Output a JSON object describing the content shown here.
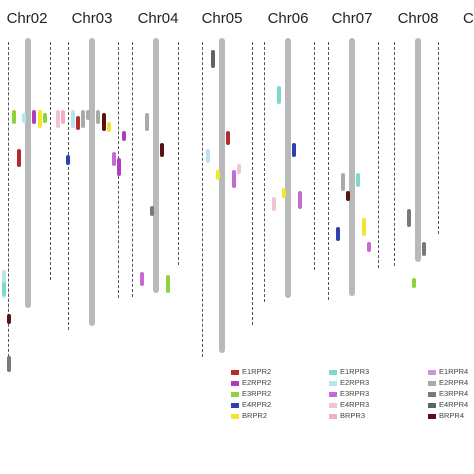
{
  "colors": {
    "E1RPR2": "#b72a2a",
    "E2RPR2": "#b23cbf",
    "E3RPR2": "#8cd23c",
    "E4RPR2": "#2f3fb5",
    "BRPR2": "#f2e532",
    "E1RPR3": "#7ed8cc",
    "E2RPR3": "#b9e4ef",
    "E3RPR3": "#c46ad0",
    "E4RPR3": "#eec3d7",
    "BRPR3": "#f4aebd",
    "E1RPR4": "#c99ad2",
    "E2RPR4": "#a9aba8",
    "E3RPR4": "#777a78",
    "E4RPR4": "#5e6463",
    "BRPR4": "#5b1111",
    "chromosome": "#b7bab8"
  },
  "chromosomes": [
    {
      "name": "Chr02",
      "markers": [
        {
          "gene": "E1RPR2",
          "pos": 0.37
        },
        {
          "gene": "E2RPR2",
          "pos": 0.24
        },
        {
          "gene": "E2RPR3",
          "pos": 0.25
        },
        {
          "gene": "BRPR2",
          "pos": 0.24
        },
        {
          "gene": "E3RPR2",
          "pos": 0.24
        },
        {
          "gene": "E3RPR2",
          "pos": 0.25
        }
      ]
    },
    {
      "name": "Chr03",
      "markers": [
        {
          "gene": "E2RPR4",
          "pos": 0.24
        },
        {
          "gene": "E2RPR4",
          "pos": 0.24
        },
        {
          "gene": "E2RPR4",
          "pos": 0.24
        },
        {
          "gene": "BRPR4",
          "pos": 0.25
        },
        {
          "gene": "E1RPR2",
          "pos": 0.26
        },
        {
          "gene": "BRPR2",
          "pos": 0.28
        },
        {
          "gene": "E2RPR3",
          "pos": 0.24
        },
        {
          "gene": "E3RPR3",
          "pos": 0.38
        },
        {
          "gene": "E4RPR2",
          "pos": 0.39
        },
        {
          "gene": "E2RPR2",
          "pos": 0.4
        },
        {
          "gene": "BRPR3",
          "pos": 0.24
        },
        {
          "gene": "E2RPR2",
          "pos": 0.31
        },
        {
          "gene": "E4RPR3",
          "pos": 0.24
        }
      ]
    },
    {
      "name": "Chr04",
      "markers": [
        {
          "gene": "E2RPR4",
          "pos": 0.25
        },
        {
          "gene": "BRPR4",
          "pos": 0.35
        },
        {
          "gene": "E3RPR4",
          "pos": 0.56
        },
        {
          "gene": "E3RPR2",
          "pos": 0.79
        },
        {
          "gene": "E3RPR3",
          "pos": 0.78
        }
      ]
    },
    {
      "name": "Chr05",
      "markers": [
        {
          "gene": "E4RPR4",
          "pos": 0.04
        },
        {
          "gene": "E1RPR2",
          "pos": 0.31
        },
        {
          "gene": "BRPR2",
          "pos": 0.44
        },
        {
          "gene": "E3RPR3",
          "pos": 0.44
        },
        {
          "gene": "E2RPR3",
          "pos": 0.37
        },
        {
          "gene": "E4RPR3",
          "pos": 0.42
        }
      ]
    },
    {
      "name": "Chr06",
      "markers": [
        {
          "gene": "E1RPR3",
          "pos": 0.16
        },
        {
          "gene": "E4RPR2",
          "pos": 0.35
        },
        {
          "gene": "BRPR2",
          "pos": 0.5
        },
        {
          "gene": "E3RPR3",
          "pos": 0.51
        },
        {
          "gene": "E4RPR3",
          "pos": 0.53
        }
      ]
    },
    {
      "name": "Chr07",
      "markers": [
        {
          "gene": "E2RPR4",
          "pos": 0.45
        },
        {
          "gene": "E1RPR3",
          "pos": 0.45
        },
        {
          "gene": "BRPR4",
          "pos": 0.51
        },
        {
          "gene": "BRPR2",
          "pos": 0.6
        },
        {
          "gene": "E4RPR2",
          "pos": 0.63
        },
        {
          "gene": "E3RPR3",
          "pos": 0.68
        }
      ]
    },
    {
      "name": "Chr08",
      "markers": [
        {
          "gene": "E3RPR4",
          "pos": 0.57
        },
        {
          "gene": "E3RPR4",
          "pos": 0.68
        },
        {
          "gene": "E3RPR2",
          "pos": 0.8
        }
      ]
    },
    {
      "name": "Cl",
      "markers": []
    }
  ],
  "legend": [
    [
      "E1RPR2",
      "E2RPR2",
      "E3RPR2",
      "E4RPR2",
      "BRPR2"
    ],
    [
      "E1RPR3",
      "E2RPR3",
      "E3RPR3",
      "E4RPR3",
      "BRPR3"
    ],
    [
      "E1RPR4",
      "E2RPR4",
      "E3RPR4",
      "E4RPR4",
      "BRPR4"
    ]
  ]
}
